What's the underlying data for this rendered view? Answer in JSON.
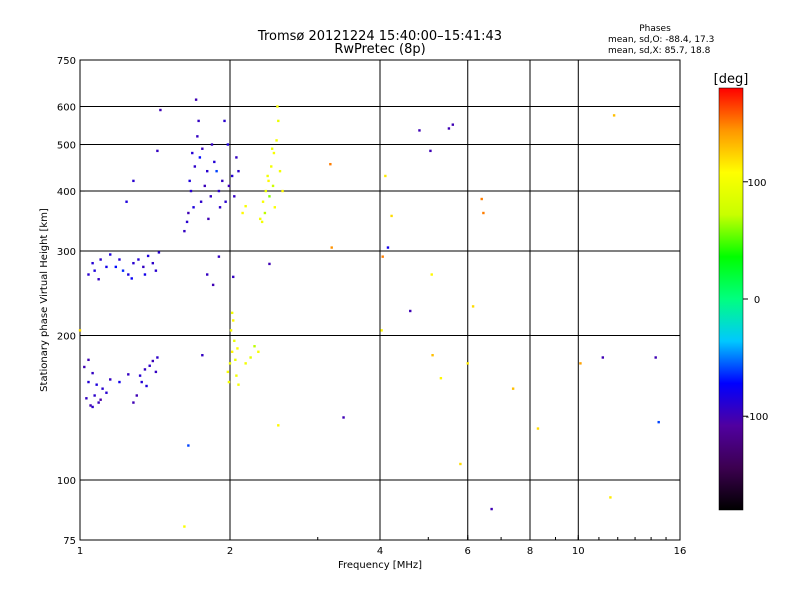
{
  "header": {
    "title_line1": "Tromsø 20121224 15:40:00–15:41:43",
    "title_line2": "RwPretec (8p)",
    "phases_title": "Phases",
    "phases_o": "mean, sd,O: -88.4, 17.3",
    "phases_x": "mean, sd,X:  85.7, 18.8"
  },
  "colorbar": {
    "label": "[deg]",
    "ticks": [
      {
        "value": 100,
        "label": "100"
      },
      {
        "value": 0,
        "label": "0"
      },
      {
        "value": -100,
        "label": "-100"
      }
    ],
    "range": [
      -180,
      180
    ],
    "colors": [
      "#000000",
      "#3c0050",
      "#5000a0",
      "#0000ff",
      "#00c8ff",
      "#00ff80",
      "#00ff00",
      "#c8ff00",
      "#ffff00",
      "#ff9600",
      "#ff0000"
    ]
  },
  "chart_data": {
    "type": "scatter",
    "xlabel": "Frequency [MHz]",
    "ylabel": "Stationary phase Virtual Height [km]",
    "xscale": "log",
    "yscale": "log",
    "xlim": [
      1,
      16
    ],
    "ylim": [
      75,
      750
    ],
    "xticks": [
      {
        "value": 1,
        "label": "1"
      },
      {
        "value": 2,
        "label": "2"
      },
      {
        "value": 4,
        "label": "4"
      },
      {
        "value": 6,
        "label": "6"
      },
      {
        "value": 8,
        "label": "8"
      },
      {
        "value": 10,
        "label": "10"
      },
      {
        "value": 16,
        "label": "16"
      }
    ],
    "xgrid": [
      2,
      4,
      6,
      8,
      10
    ],
    "yticks": [
      {
        "value": 75,
        "label": "75"
      },
      {
        "value": 100,
        "label": "100"
      },
      {
        "value": 200,
        "label": "200"
      },
      {
        "value": 300,
        "label": "300"
      },
      {
        "value": 400,
        "label": "400"
      },
      {
        "value": 500,
        "label": "500"
      },
      {
        "value": 600,
        "label": "600"
      },
      {
        "value": 750,
        "label": "750"
      }
    ],
    "ygrid": [
      100,
      200,
      300,
      400,
      500,
      600
    ],
    "grid": true,
    "color_by": "phase [deg]",
    "points": [
      {
        "x": 1.03,
        "y": 148,
        "phase": -95
      },
      {
        "x": 1.05,
        "y": 143,
        "phase": -100
      },
      {
        "x": 1.07,
        "y": 150,
        "phase": -92
      },
      {
        "x": 1.09,
        "y": 145,
        "phase": -98
      },
      {
        "x": 1.11,
        "y": 155,
        "phase": -90
      },
      {
        "x": 1.04,
        "y": 160,
        "phase": -88
      },
      {
        "x": 1.06,
        "y": 167,
        "phase": -95
      },
      {
        "x": 1.02,
        "y": 172,
        "phase": -100
      },
      {
        "x": 1.08,
        "y": 158,
        "phase": -85
      },
      {
        "x": 1.1,
        "y": 147,
        "phase": -105
      },
      {
        "x": 1.13,
        "y": 152,
        "phase": -90
      },
      {
        "x": 1.15,
        "y": 162,
        "phase": -95
      },
      {
        "x": 1.04,
        "y": 178,
        "phase": -100
      },
      {
        "x": 1.06,
        "y": 142,
        "phase": -92
      },
      {
        "x": 1.2,
        "y": 160,
        "phase": -80
      },
      {
        "x": 1.25,
        "y": 166,
        "phase": -95
      },
      {
        "x": 1.3,
        "y": 150,
        "phase": -100
      },
      {
        "x": 1.33,
        "y": 160,
        "phase": -88
      },
      {
        "x": 1.35,
        "y": 170,
        "phase": -95
      },
      {
        "x": 1.38,
        "y": 173,
        "phase": -92
      },
      {
        "x": 1.4,
        "y": 177,
        "phase": -98
      },
      {
        "x": 1.36,
        "y": 157,
        "phase": -85
      },
      {
        "x": 1.32,
        "y": 165,
        "phase": -90
      },
      {
        "x": 1.42,
        "y": 168,
        "phase": -95
      },
      {
        "x": 1.28,
        "y": 145,
        "phase": -100
      },
      {
        "x": 1.43,
        "y": 180,
        "phase": -92
      },
      {
        "x": 1.04,
        "y": 268,
        "phase": -90
      },
      {
        "x": 1.07,
        "y": 273,
        "phase": -85
      },
      {
        "x": 1.1,
        "y": 288,
        "phase": -92
      },
      {
        "x": 1.13,
        "y": 278,
        "phase": -80
      },
      {
        "x": 1.06,
        "y": 283,
        "phase": -88
      },
      {
        "x": 1.09,
        "y": 262,
        "phase": -95
      },
      {
        "x": 1.18,
        "y": 278,
        "phase": -70
      },
      {
        "x": 1.22,
        "y": 273,
        "phase": -65
      },
      {
        "x": 1.25,
        "y": 268,
        "phase": -85
      },
      {
        "x": 1.28,
        "y": 283,
        "phase": -90
      },
      {
        "x": 1.31,
        "y": 288,
        "phase": -88
      },
      {
        "x": 1.34,
        "y": 278,
        "phase": -95
      },
      {
        "x": 1.37,
        "y": 293,
        "phase": -85
      },
      {
        "x": 1.4,
        "y": 283,
        "phase": -92
      },
      {
        "x": 1.42,
        "y": 273,
        "phase": -90
      },
      {
        "x": 1.27,
        "y": 263,
        "phase": -75
      },
      {
        "x": 1.35,
        "y": 268,
        "phase": -80
      },
      {
        "x": 1.2,
        "y": 288,
        "phase": -88
      },
      {
        "x": 1.44,
        "y": 298,
        "phase": -90
      },
      {
        "x": 1.15,
        "y": 295,
        "phase": -85
      },
      {
        "x": 1.62,
        "y": 330,
        "phase": -95
      },
      {
        "x": 1.65,
        "y": 360,
        "phase": -100
      },
      {
        "x": 1.67,
        "y": 400,
        "phase": -90
      },
      {
        "x": 1.7,
        "y": 450,
        "phase": -92
      },
      {
        "x": 1.72,
        "y": 520,
        "phase": -95
      },
      {
        "x": 1.68,
        "y": 480,
        "phase": -88
      },
      {
        "x": 1.71,
        "y": 620,
        "phase": -100
      },
      {
        "x": 1.73,
        "y": 560,
        "phase": -95
      },
      {
        "x": 1.66,
        "y": 420,
        "phase": -85
      },
      {
        "x": 1.75,
        "y": 380,
        "phase": -92
      },
      {
        "x": 1.78,
        "y": 410,
        "phase": -98
      },
      {
        "x": 1.8,
        "y": 440,
        "phase": -90
      },
      {
        "x": 1.83,
        "y": 390,
        "phase": -95
      },
      {
        "x": 1.86,
        "y": 460,
        "phase": -88
      },
      {
        "x": 1.74,
        "y": 470,
        "phase": -70
      },
      {
        "x": 1.81,
        "y": 350,
        "phase": -100
      },
      {
        "x": 1.69,
        "y": 370,
        "phase": -85
      },
      {
        "x": 1.9,
        "y": 400,
        "phase": -92
      },
      {
        "x": 1.93,
        "y": 420,
        "phase": -95
      },
      {
        "x": 1.96,
        "y": 380,
        "phase": -90
      },
      {
        "x": 1.99,
        "y": 410,
        "phase": -100
      },
      {
        "x": 2.02,
        "y": 430,
        "phase": -88
      },
      {
        "x": 2.06,
        "y": 470,
        "phase": -95
      },
      {
        "x": 2.08,
        "y": 440,
        "phase": -92
      },
      {
        "x": 1.95,
        "y": 560,
        "phase": -90
      },
      {
        "x": 1.98,
        "y": 500,
        "phase": -85
      },
      {
        "x": 2.04,
        "y": 390,
        "phase": -95
      },
      {
        "x": 1.88,
        "y": 440,
        "phase": -60
      },
      {
        "x": 1.84,
        "y": 500,
        "phase": -95
      },
      {
        "x": 1.91,
        "y": 370,
        "phase": -92
      },
      {
        "x": 1.76,
        "y": 490,
        "phase": -98
      },
      {
        "x": 1.64,
        "y": 345,
        "phase": -90
      },
      {
        "x": 1.98,
        "y": 168,
        "phase": 105
      },
      {
        "x": 2.0,
        "y": 175,
        "phase": 100
      },
      {
        "x": 2.02,
        "y": 185,
        "phase": 110
      },
      {
        "x": 2.04,
        "y": 195,
        "phase": 95
      },
      {
        "x": 2.06,
        "y": 165,
        "phase": 100
      },
      {
        "x": 2.01,
        "y": 205,
        "phase": 105
      },
      {
        "x": 2.03,
        "y": 215,
        "phase": 110
      },
      {
        "x": 1.99,
        "y": 160,
        "phase": 100
      },
      {
        "x": 2.05,
        "y": 178,
        "phase": 95
      },
      {
        "x": 2.07,
        "y": 188,
        "phase": 108
      },
      {
        "x": 2.08,
        "y": 158,
        "phase": 102
      },
      {
        "x": 2.02,
        "y": 223,
        "phase": 100
      },
      {
        "x": 2.15,
        "y": 175,
        "phase": 100
      },
      {
        "x": 2.2,
        "y": 180,
        "phase": 90
      },
      {
        "x": 2.24,
        "y": 190,
        "phase": 70
      },
      {
        "x": 2.28,
        "y": 185,
        "phase": 105
      },
      {
        "x": 2.3,
        "y": 350,
        "phase": 100
      },
      {
        "x": 2.33,
        "y": 380,
        "phase": 105
      },
      {
        "x": 2.36,
        "y": 400,
        "phase": 95
      },
      {
        "x": 2.39,
        "y": 420,
        "phase": 110
      },
      {
        "x": 2.42,
        "y": 450,
        "phase": 100
      },
      {
        "x": 2.45,
        "y": 480,
        "phase": 105
      },
      {
        "x": 2.48,
        "y": 510,
        "phase": 100
      },
      {
        "x": 2.5,
        "y": 560,
        "phase": 95
      },
      {
        "x": 2.35,
        "y": 360,
        "phase": 70
      },
      {
        "x": 2.4,
        "y": 390,
        "phase": 60
      },
      {
        "x": 2.44,
        "y": 410,
        "phase": 75
      },
      {
        "x": 2.38,
        "y": 430,
        "phase": 100
      },
      {
        "x": 2.46,
        "y": 370,
        "phase": 105
      },
      {
        "x": 2.52,
        "y": 440,
        "phase": 100
      },
      {
        "x": 2.55,
        "y": 400,
        "phase": 110
      },
      {
        "x": 2.32,
        "y": 345,
        "phase": 100
      },
      {
        "x": 2.49,
        "y": 600,
        "phase": 105
      },
      {
        "x": 2.43,
        "y": 490,
        "phase": 95
      },
      {
        "x": 2.12,
        "y": 360,
        "phase": 110
      },
      {
        "x": 2.15,
        "y": 372,
        "phase": 105
      },
      {
        "x": 1.0,
        "y": 205,
        "phase": 120
      },
      {
        "x": 1.45,
        "y": 590,
        "phase": -100
      },
      {
        "x": 1.43,
        "y": 485,
        "phase": -95
      },
      {
        "x": 1.28,
        "y": 420,
        "phase": -90
      },
      {
        "x": 1.24,
        "y": 380,
        "phase": -85
      },
      {
        "x": 1.62,
        "y": 80,
        "phase": 105
      },
      {
        "x": 1.65,
        "y": 118,
        "phase": -60
      },
      {
        "x": 1.76,
        "y": 182,
        "phase": -95
      },
      {
        "x": 1.8,
        "y": 268,
        "phase": -95
      },
      {
        "x": 1.85,
        "y": 255,
        "phase": -100
      },
      {
        "x": 1.9,
        "y": 292,
        "phase": -95
      },
      {
        "x": 2.03,
        "y": 265,
        "phase": -95
      },
      {
        "x": 2.4,
        "y": 282,
        "phase": -100
      },
      {
        "x": 2.5,
        "y": 130,
        "phase": 110
      },
      {
        "x": 3.18,
        "y": 455,
        "phase": 150
      },
      {
        "x": 3.2,
        "y": 305,
        "phase": 145
      },
      {
        "x": 3.38,
        "y": 135,
        "phase": -100
      },
      {
        "x": 4.1,
        "y": 430,
        "phase": 115
      },
      {
        "x": 4.15,
        "y": 305,
        "phase": -80
      },
      {
        "x": 4.22,
        "y": 355,
        "phase": 120
      },
      {
        "x": 4.05,
        "y": 292,
        "phase": 150
      },
      {
        "x": 4.03,
        "y": 205,
        "phase": 110
      },
      {
        "x": 4.6,
        "y": 225,
        "phase": -100
      },
      {
        "x": 4.8,
        "y": 535,
        "phase": -100
      },
      {
        "x": 5.05,
        "y": 485,
        "phase": -100
      },
      {
        "x": 5.08,
        "y": 268,
        "phase": 110
      },
      {
        "x": 5.1,
        "y": 182,
        "phase": 130
      },
      {
        "x": 5.3,
        "y": 163,
        "phase": 110
      },
      {
        "x": 5.5,
        "y": 540,
        "phase": -100
      },
      {
        "x": 5.6,
        "y": 550,
        "phase": -100
      },
      {
        "x": 5.8,
        "y": 108,
        "phase": 120
      },
      {
        "x": 6.0,
        "y": 175,
        "phase": 115
      },
      {
        "x": 6.15,
        "y": 230,
        "phase": 120
      },
      {
        "x": 6.4,
        "y": 385,
        "phase": 150
      },
      {
        "x": 6.45,
        "y": 360,
        "phase": 150
      },
      {
        "x": 6.7,
        "y": 87,
        "phase": -100
      },
      {
        "x": 7.4,
        "y": 155,
        "phase": 130
      },
      {
        "x": 8.3,
        "y": 128,
        "phase": 120
      },
      {
        "x": 10.1,
        "y": 175,
        "phase": 140
      },
      {
        "x": 11.2,
        "y": 180,
        "phase": -100
      },
      {
        "x": 11.6,
        "y": 92,
        "phase": 115
      },
      {
        "x": 11.8,
        "y": 575,
        "phase": 130
      },
      {
        "x": 14.3,
        "y": 180,
        "phase": -100
      },
      {
        "x": 14.5,
        "y": 132,
        "phase": -60
      }
    ]
  }
}
